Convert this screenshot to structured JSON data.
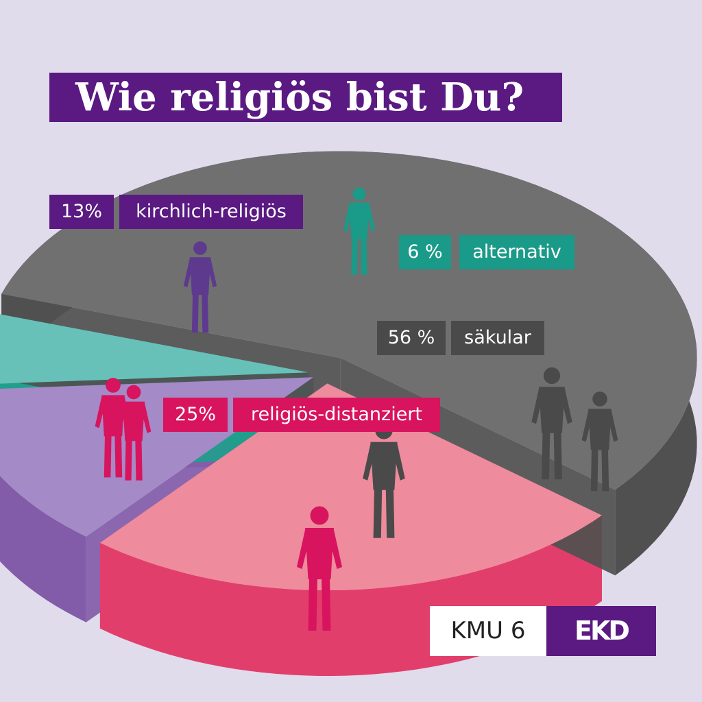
{
  "title": "Wie religiös bist Du?",
  "chart_data": {
    "type": "pie",
    "title": "Wie religiös bist Du?",
    "slices": [
      {
        "label": "säkular",
        "value_label": "56 %",
        "value": 56,
        "color": "#707070",
        "side": "#505050"
      },
      {
        "label": "religiös-distanziert",
        "value_label": "25%",
        "value": 25,
        "color": "#ee8b9c",
        "side": "#e23e6c"
      },
      {
        "label": "kirchlich-religiös",
        "value_label": "13%",
        "value": 13,
        "color": "#a48ac6",
        "side": "#825ca8"
      },
      {
        "label": "alternativ",
        "value_label": "6 %",
        "value": 6,
        "color": "#68c1b8",
        "side": "#1f9e8c"
      }
    ]
  },
  "labels": {
    "kirchlich_pct": "13%",
    "kirchlich": "kirchlich-religiös",
    "alternativ_pct": "6 %",
    "alternativ": "alternativ",
    "saekular_pct": "56 %",
    "saekular": "säkular",
    "distanziert_pct": "25%",
    "distanziert": "religiös-distanziert"
  },
  "colors": {
    "background": "#e1dcec",
    "title_bg": "#5a1a82",
    "saekular_label": "#4a4a4a",
    "distanziert_label": "#d8145e",
    "kirchlich_label": "#5a1a82",
    "alternativ_label": "#1a9a88"
  },
  "source": "KMU 6",
  "logo": "EKD"
}
